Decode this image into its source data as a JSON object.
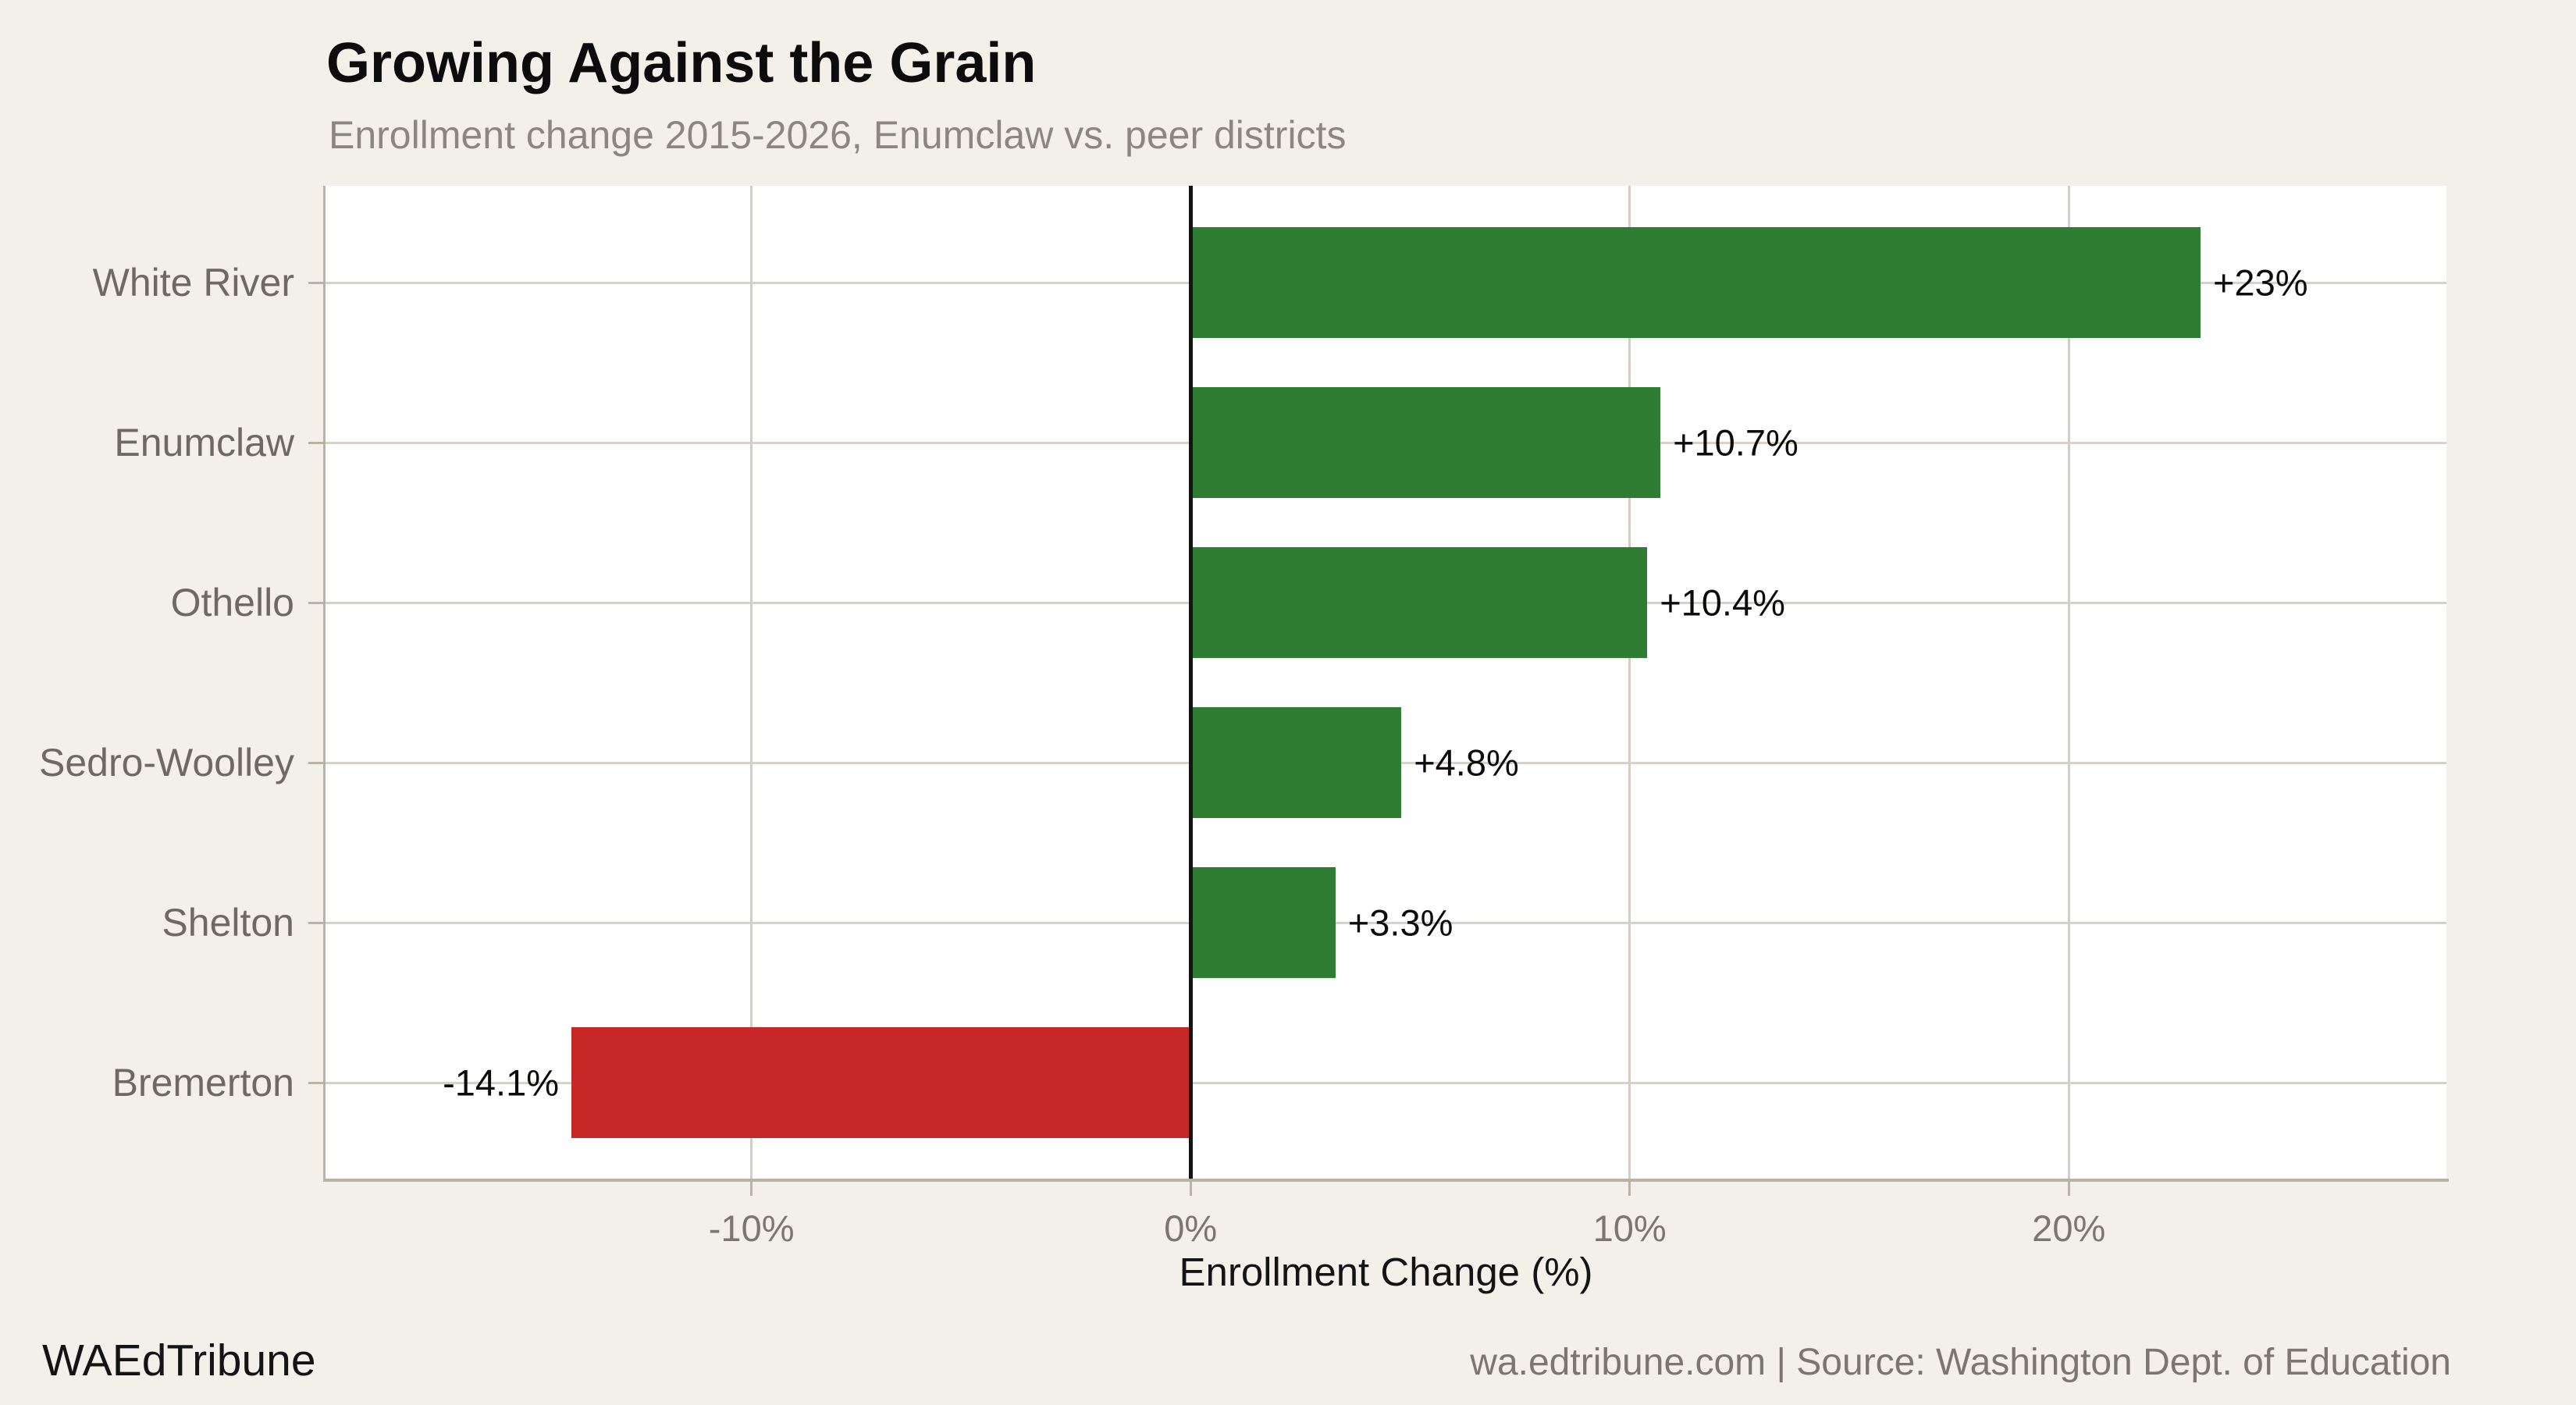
{
  "footer": {
    "brand": "WAEdTribune",
    "source": "wa.edtribune.com | Source: Washington Dept. of Education"
  },
  "chart_data": {
    "type": "bar",
    "orientation": "horizontal",
    "title": "Growing Against the Grain",
    "subtitle": "Enrollment change 2015-2026, Enumclaw vs. peer districts",
    "xlabel": "Enrollment Change (%)",
    "ylabel": "",
    "categories": [
      "White River",
      "Enumclaw",
      "Othello",
      "Sedro-Woolley",
      "Shelton",
      "Bremerton"
    ],
    "values": [
      23,
      10.7,
      10.4,
      4.8,
      3.3,
      -14.1
    ],
    "bar_labels": [
      "+23%",
      "+10.7%",
      "+10.4%",
      "+4.8%",
      "+3.3%",
      "-14.1%"
    ],
    "xlim": [
      -19.7,
      28.6
    ],
    "xticks": [
      {
        "value": -10,
        "label": "-10%"
      },
      {
        "value": 0,
        "label": "0%"
      },
      {
        "value": 10,
        "label": "10%"
      },
      {
        "value": 20,
        "label": "20%"
      }
    ],
    "grid": "on",
    "legend": "none",
    "zero_line": true,
    "colors": {
      "positive": "#2e7d32",
      "negative": "#c62828",
      "zero_line": "#141414",
      "grid_line": "#d7d2c8",
      "axis_line": "#b8b2a7",
      "panel_bg": "#ffffff",
      "page_bg": "#f3f0ea"
    }
  }
}
